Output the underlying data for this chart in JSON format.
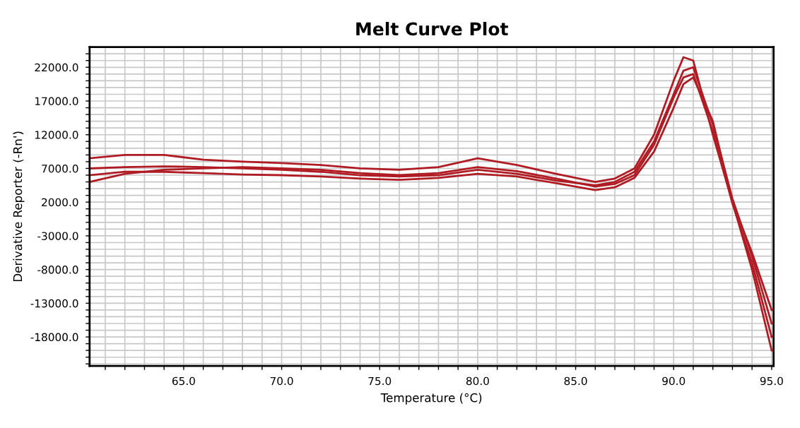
{
  "chart_data": {
    "type": "line",
    "title": "Melt Curve Plot",
    "xlabel": "Temperature (°C)",
    "ylabel": "Derivative Reporter (-Rn')",
    "xlim": [
      60.2,
      95.1
    ],
    "ylim": [
      -22300,
      25000
    ],
    "xticks": [
      {
        "value": 61,
        "label": null
      },
      {
        "value": 62,
        "label": null
      },
      {
        "value": 63,
        "label": null
      },
      {
        "value": 64,
        "label": null
      },
      {
        "value": 65,
        "label": "65.0"
      },
      {
        "value": 66,
        "label": null
      },
      {
        "value": 67,
        "label": null
      },
      {
        "value": 68,
        "label": null
      },
      {
        "value": 69,
        "label": null
      },
      {
        "value": 70,
        "label": "70.0"
      },
      {
        "value": 71,
        "label": null
      },
      {
        "value": 72,
        "label": null
      },
      {
        "value": 73,
        "label": null
      },
      {
        "value": 74,
        "label": null
      },
      {
        "value": 75,
        "label": "75.0"
      },
      {
        "value": 76,
        "label": null
      },
      {
        "value": 77,
        "label": null
      },
      {
        "value": 78,
        "label": null
      },
      {
        "value": 79,
        "label": null
      },
      {
        "value": 80,
        "label": "80.0"
      },
      {
        "value": 81,
        "label": null
      },
      {
        "value": 82,
        "label": null
      },
      {
        "value": 83,
        "label": null
      },
      {
        "value": 84,
        "label": null
      },
      {
        "value": 85,
        "label": "85.0"
      },
      {
        "value": 86,
        "label": null
      },
      {
        "value": 87,
        "label": null
      },
      {
        "value": 88,
        "label": null
      },
      {
        "value": 89,
        "label": null
      },
      {
        "value": 90,
        "label": "90.0"
      },
      {
        "value": 91,
        "label": null
      },
      {
        "value": 92,
        "label": null
      },
      {
        "value": 93,
        "label": null
      },
      {
        "value": 94,
        "label": null
      },
      {
        "value": 95,
        "label": "95.0"
      }
    ],
    "yticks": [
      {
        "value": -22000,
        "label": null
      },
      {
        "value": -21000,
        "label": null
      },
      {
        "value": -20000,
        "label": null
      },
      {
        "value": -19000,
        "label": null
      },
      {
        "value": -18000,
        "label": "-18000.0"
      },
      {
        "value": -17000,
        "label": null
      },
      {
        "value": -16000,
        "label": null
      },
      {
        "value": -15000,
        "label": null
      },
      {
        "value": -14000,
        "label": null
      },
      {
        "value": -13000,
        "label": "-13000.0"
      },
      {
        "value": -12000,
        "label": null
      },
      {
        "value": -11000,
        "label": null
      },
      {
        "value": -10000,
        "label": null
      },
      {
        "value": -9000,
        "label": null
      },
      {
        "value": -8000,
        "label": "-8000.0"
      },
      {
        "value": -7000,
        "label": null
      },
      {
        "value": -6000,
        "label": null
      },
      {
        "value": -5000,
        "label": null
      },
      {
        "value": -4000,
        "label": null
      },
      {
        "value": -3000,
        "label": "-3000.0"
      },
      {
        "value": -2000,
        "label": null
      },
      {
        "value": -1000,
        "label": null
      },
      {
        "value": 0,
        "label": null
      },
      {
        "value": 1000,
        "label": null
      },
      {
        "value": 2000,
        "label": "2000.0"
      },
      {
        "value": 3000,
        "label": null
      },
      {
        "value": 4000,
        "label": null
      },
      {
        "value": 5000,
        "label": null
      },
      {
        "value": 6000,
        "label": null
      },
      {
        "value": 7000,
        "label": "7000.0"
      },
      {
        "value": 8000,
        "label": null
      },
      {
        "value": 9000,
        "label": null
      },
      {
        "value": 10000,
        "label": null
      },
      {
        "value": 11000,
        "label": null
      },
      {
        "value": 12000,
        "label": "12000.0"
      },
      {
        "value": 13000,
        "label": null
      },
      {
        "value": 14000,
        "label": null
      },
      {
        "value": 15000,
        "label": null
      },
      {
        "value": 16000,
        "label": null
      },
      {
        "value": 17000,
        "label": "17000.0"
      },
      {
        "value": 18000,
        "label": null
      },
      {
        "value": 19000,
        "label": null
      },
      {
        "value": 20000,
        "label": null
      },
      {
        "value": 21000,
        "label": null
      },
      {
        "value": 22000,
        "label": "22000.0"
      },
      {
        "value": 23000,
        "label": null
      },
      {
        "value": 24000,
        "label": null
      }
    ],
    "grid": true,
    "legend": false,
    "x": [
      60.2,
      62,
      64,
      66,
      68,
      70,
      72,
      74,
      76,
      78,
      80,
      82,
      84,
      86,
      87,
      88,
      89,
      90,
      90.5,
      91,
      92,
      93,
      94,
      95
    ],
    "series": [
      {
        "color": "#b01c24",
        "values": [
          8500,
          9000,
          9000,
          8300,
          8000,
          7800,
          7500,
          7000,
          6800,
          7200,
          8500,
          7500,
          6200,
          5000,
          5500,
          7000,
          12000,
          20000,
          23500,
          23000,
          12000,
          2000,
          -8000,
          -20000
        ]
      },
      {
        "color": "#b01c24",
        "values": [
          7000,
          7200,
          7300,
          7200,
          7000,
          6800,
          6500,
          6000,
          5800,
          6000,
          6800,
          6200,
          5200,
          4500,
          5000,
          6500,
          11000,
          18000,
          21500,
          22000,
          13500,
          2500,
          -6000,
          -16000
        ]
      },
      {
        "color": "#b01c24",
        "values": [
          6000,
          6500,
          6500,
          6300,
          6100,
          6000,
          5800,
          5500,
          5300,
          5600,
          6200,
          5800,
          4800,
          3800,
          4200,
          5600,
          9500,
          16000,
          19500,
          20500,
          14000,
          2000,
          -5500,
          -14000
        ]
      },
      {
        "color": "#b01c24",
        "values": [
          5000,
          6200,
          6800,
          7000,
          7200,
          7000,
          6800,
          6300,
          6000,
          6300,
          7200,
          6600,
          5500,
          4300,
          4700,
          6000,
          10500,
          17500,
          20500,
          21000,
          12500,
          1800,
          -7000,
          -18000
        ]
      }
    ]
  }
}
